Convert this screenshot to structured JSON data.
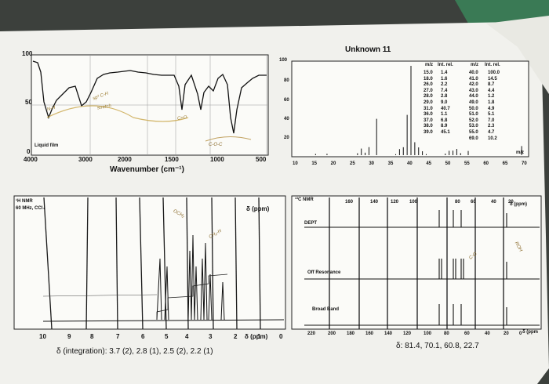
{
  "ir": {
    "y_ticks": [
      "100",
      "50",
      "0"
    ],
    "x_ticks": [
      "4000",
      "3000",
      "2000",
      "1500",
      "1000",
      "500"
    ],
    "xlabel": "Wavenumber (cm⁻¹)",
    "sample_label": "Liquid film",
    "handwritten": [
      "N-H",
      "sp³ C-H",
      "stretch",
      "C=O",
      "C-O-C"
    ]
  },
  "ms": {
    "title": "Unknown 11",
    "y_ticks": [
      "100",
      "80",
      "60",
      "40",
      "20"
    ],
    "x_ticks": [
      "10",
      "15",
      "20",
      "25",
      "30",
      "35",
      "40",
      "45",
      "50",
      "55",
      "60",
      "65",
      "70"
    ],
    "x_unit": "m/z",
    "table_headers": [
      "m/z",
      "Int. rel.",
      "m/z",
      "Int. rel."
    ],
    "table_left": [
      [
        "15.0",
        "1.4"
      ],
      [
        "18.0",
        "1.6"
      ],
      [
        "26.0",
        "2.2"
      ],
      [
        "27.0",
        "7.4"
      ],
      [
        "28.0",
        "2.8"
      ],
      [
        "29.0",
        "9.0"
      ],
      [
        "31.0",
        "40.7"
      ],
      [
        "36.0",
        "1.1"
      ],
      [
        "37.0",
        "6.8"
      ],
      [
        "38.0",
        "8.9"
      ],
      [
        "39.0",
        "45.1"
      ]
    ],
    "table_right": [
      [
        "40.0",
        "100.0"
      ],
      [
        "41.0",
        "14.5"
      ],
      [
        "42.0",
        "8.7"
      ],
      [
        "43.0",
        "4.4"
      ],
      [
        "44.0",
        "1.2"
      ],
      [
        "49.0",
        "1.8"
      ],
      [
        "50.0",
        "4.9"
      ],
      [
        "51.0",
        "5.1"
      ],
      [
        "52.0",
        "7.0"
      ],
      [
        "53.0",
        "2.3"
      ],
      [
        "55.0",
        "4.7"
      ],
      [
        "69.0",
        "10.2"
      ]
    ]
  },
  "hnmr": {
    "label_line1": "¹H NMR",
    "label_line2": "60 MHz, CCl₄",
    "ppm_label": "δ (ppm)",
    "x_ticks": [
      "10",
      "9",
      "8",
      "7",
      "6",
      "5",
      "4",
      "3",
      "2",
      "1",
      "0"
    ],
    "axis_label": "δ (ppm)",
    "integration_text": "δ (integration): 3.7 (2), 2.8 (1), 2.5 (2), 2.2 (1)",
    "handwritten": [
      "OCH₂",
      "CH₂-H"
    ]
  },
  "cnmr": {
    "label": "¹³C NMR",
    "ppm_label": "δ (ppm)",
    "top_ticks": [
      "160",
      "140",
      "120",
      "100",
      "80",
      "60",
      "40",
      "20"
    ],
    "x_ticks": [
      "220",
      "200",
      "180",
      "160",
      "140",
      "120",
      "100",
      "80",
      "60",
      "40",
      "20",
      "0"
    ],
    "axis_label": "δ (ppm",
    "rows": [
      "DEPT",
      "Off Resonance",
      "Broad Band"
    ],
    "shifts_text": "δ: 81.4, 70.1, 60.8, 22.7",
    "handwritten": [
      "C-O",
      "ROH"
    ]
  },
  "colors": {
    "paper": "#f1f1ed",
    "ink": "#161616",
    "background": "#3c403c",
    "green_tab": "#3a7a55"
  }
}
